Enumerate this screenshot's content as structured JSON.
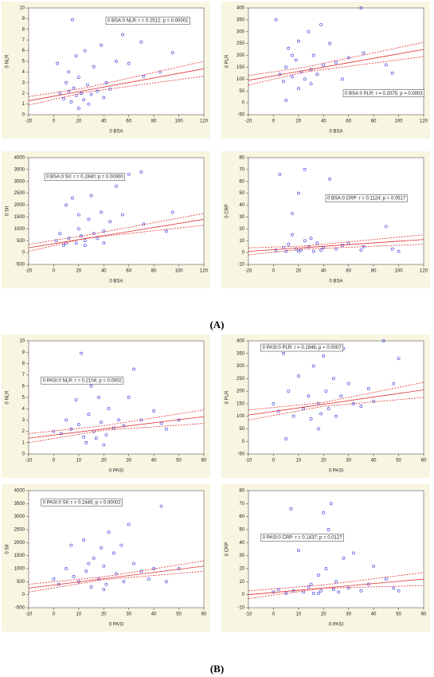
{
  "figure_labels": [
    "(A)",
    "(B)"
  ],
  "chart_data": [
    {
      "type": "scatter",
      "xlabel": "0 BSA",
      "ylabel": "0 NLR",
      "annotation": "0 BSA:0 NLR:  r = 0.2512; p = 0.00001",
      "xlim": [
        -20,
        120
      ],
      "ylim": [
        0,
        10
      ],
      "xticks": [
        -20,
        0,
        20,
        40,
        60,
        80,
        100,
        120
      ],
      "yticks": [
        0,
        1,
        2,
        3,
        4,
        5,
        6,
        7,
        8,
        9,
        10
      ],
      "color": "#2b2bd6",
      "x": [
        5,
        8,
        10,
        12,
        14,
        15,
        16,
        18,
        20,
        22,
        24,
        25,
        27,
        30,
        32,
        35,
        38,
        40,
        42,
        45,
        50,
        55,
        60,
        70,
        72,
        95,
        85,
        3,
        20,
        28,
        12,
        18
      ],
      "y": [
        2,
        1.5,
        3,
        2.2,
        1.2,
        8.9,
        2.5,
        1.8,
        3.5,
        2,
        1.4,
        6,
        2.8,
        1.9,
        4.5,
        2.2,
        6.5,
        1.6,
        3,
        2.4,
        5,
        7.5,
        4.8,
        6.8,
        3.6,
        5.8,
        4,
        4.8,
        0.6,
        1,
        4,
        5.5
      ],
      "fit_color": "#e03030",
      "fit_x": [
        -20,
        120
      ],
      "fit_y": [
        1.3,
        4.3
      ],
      "ci_x": [
        -20,
        25,
        120
      ],
      "ci_lower": [
        0.9,
        2.1,
        3.6
      ],
      "ci_upper": [
        1.7,
        2.5,
        5.0
      ]
    },
    {
      "type": "scatter",
      "xlabel": "0 BSA",
      "ylabel": "0 PLR",
      "annotation": "0 BSA:0 PLR:  r = 0.2075; p = 0.0003",
      "xlim": [
        -20,
        120
      ],
      "ylim": [
        -50,
        400
      ],
      "xticks": [
        -20,
        0,
        20,
        40,
        60,
        80,
        100,
        120
      ],
      "yticks": [
        -50,
        0,
        50,
        100,
        150,
        200,
        250,
        300,
        350,
        400
      ],
      "color": "#2b2bd6",
      "x": [
        2,
        5,
        8,
        10,
        12,
        15,
        18,
        20,
        22,
        25,
        28,
        30,
        32,
        35,
        38,
        40,
        45,
        50,
        55,
        60,
        70,
        72,
        90,
        95,
        10,
        20,
        30,
        15
      ],
      "y": [
        350,
        120,
        90,
        150,
        230,
        110,
        180,
        260,
        130,
        100,
        300,
        140,
        200,
        120,
        330,
        160,
        250,
        170,
        100,
        190,
        400,
        210,
        160,
        125,
        10,
        60,
        80,
        200
      ],
      "fit_color": "#e03030",
      "fit_x": [
        -20,
        120
      ],
      "fit_y": [
        95,
        225
      ],
      "ci_x": [
        -20,
        25,
        120
      ],
      "ci_lower": [
        75,
        130,
        195
      ],
      "ci_upper": [
        115,
        150,
        255
      ]
    },
    {
      "type": "scatter",
      "xlabel": "0 BSA",
      "ylabel": "0 SII",
      "annotation": "0 BSA:0 SII:  r = 0.2840; p = 0.00000",
      "xlim": [
        -20,
        120
      ],
      "ylim": [
        -500,
        4000
      ],
      "xticks": [
        -20,
        0,
        20,
        40,
        60,
        80,
        100,
        120
      ],
      "yticks": [
        -500,
        0,
        500,
        1000,
        1500,
        2000,
        2500,
        3000,
        3500,
        4000
      ],
      "color": "#2b2bd6",
      "x": [
        2,
        5,
        8,
        10,
        12,
        15,
        18,
        20,
        22,
        25,
        28,
        30,
        32,
        35,
        38,
        40,
        45,
        50,
        55,
        60,
        70,
        72,
        90,
        95,
        10,
        25,
        40,
        20
      ],
      "y": [
        500,
        800,
        300,
        2000,
        600,
        2300,
        400,
        1000,
        700,
        500,
        1400,
        2400,
        800,
        600,
        1700,
        900,
        1300,
        2800,
        1600,
        3300,
        3400,
        1200,
        900,
        1700,
        400,
        300,
        400,
        1600
      ],
      "fit_color": "#e03030",
      "fit_x": [
        -20,
        120
      ],
      "fit_y": [
        200,
        1400
      ],
      "ci_x": [
        -20,
        25,
        120
      ],
      "ci_lower": [
        50,
        600,
        1150
      ],
      "ci_upper": [
        350,
        720,
        1650
      ]
    },
    {
      "type": "scatter",
      "xlabel": "0 BSA",
      "ylabel": "0 CRP",
      "annotation": "0 BSA:0 CRP:  r = 0.1124; p = 0.0517",
      "xlim": [
        -20,
        120
      ],
      "ylim": [
        -10,
        80
      ],
      "xticks": [
        -20,
        0,
        20,
        40,
        60,
        80,
        100,
        120
      ],
      "yticks": [
        -10,
        0,
        10,
        20,
        30,
        40,
        50,
        60,
        70,
        80
      ],
      "color": "#2b2bd6",
      "x": [
        2,
        5,
        8,
        10,
        12,
        15,
        18,
        20,
        22,
        25,
        28,
        30,
        32,
        35,
        38,
        40,
        45,
        50,
        55,
        60,
        70,
        72,
        90,
        95,
        100,
        15,
        25,
        20
      ],
      "y": [
        2,
        66,
        4,
        1,
        7,
        33,
        3,
        50,
        2,
        70,
        5,
        12,
        1,
        8,
        2,
        4,
        62,
        3,
        6,
        8,
        2,
        5,
        22,
        3,
        1,
        15,
        10,
        1
      ],
      "fit_color": "#e03030",
      "fit_x": [
        -20,
        120
      ],
      "fit_y": [
        1,
        11
      ],
      "ci_x": [
        -20,
        25,
        120
      ],
      "ci_lower": [
        -2,
        3,
        7
      ],
      "ci_upper": [
        4,
        5.5,
        15
      ]
    },
    {
      "type": "scatter",
      "xlabel": "0 PASI",
      "ylabel": "0 NLR",
      "annotation": "0 PASI:0 NLR:  r = 0.2104; p = 0.0002",
      "xlim": [
        -10,
        60
      ],
      "ylim": [
        0,
        10
      ],
      "xticks": [
        -10,
        0,
        10,
        20,
        30,
        40,
        50,
        60
      ],
      "yticks": [
        0,
        1,
        2,
        3,
        4,
        5,
        6,
        7,
        8,
        9,
        10
      ],
      "color": "#2b2bd6",
      "x": [
        0,
        3,
        5,
        7,
        9,
        10,
        11,
        12,
        14,
        15,
        16,
        17,
        18,
        19,
        20,
        21,
        22,
        24,
        25,
        26,
        28,
        30,
        32,
        35,
        40,
        43,
        45,
        50,
        20,
        13
      ],
      "y": [
        2,
        1.8,
        3,
        2.2,
        4.8,
        2.6,
        8.9,
        1.5,
        3.5,
        6,
        2,
        1.4,
        5,
        2.8,
        6.5,
        1.7,
        4,
        2.3,
        6.6,
        3,
        2.5,
        5,
        7.5,
        3,
        3.8,
        2.7,
        2.2,
        3,
        0.8,
        1
      ],
      "fit_color": "#e03030",
      "fit_x": [
        -10,
        60
      ],
      "fit_y": [
        1.4,
        3.3
      ],
      "ci_x": [
        -10,
        20,
        60
      ],
      "ci_lower": [
        1,
        2.1,
        2.7
      ],
      "ci_upper": [
        1.8,
        2.5,
        3.9
      ]
    },
    {
      "type": "scatter",
      "xlabel": "0 PASI",
      "ylabel": "0 PLR",
      "annotation": "0 PASI:0 PLR:  r = 0.1946; p = 0.0007",
      "xlim": [
        -10,
        60
      ],
      "ylim": [
        -50,
        400
      ],
      "xticks": [
        -10,
        0,
        10,
        20,
        30,
        40,
        50,
        60
      ],
      "yticks": [
        -50,
        0,
        50,
        100,
        150,
        200,
        250,
        300,
        350,
        400
      ],
      "color": "#2b2bd6",
      "x": [
        0,
        2,
        4,
        6,
        8,
        10,
        12,
        14,
        15,
        16,
        18,
        19,
        20,
        21,
        22,
        24,
        25,
        27,
        28,
        30,
        32,
        35,
        38,
        40,
        44,
        48,
        50,
        5,
        18
      ],
      "y": [
        150,
        120,
        350,
        200,
        100,
        260,
        130,
        180,
        90,
        300,
        150,
        110,
        340,
        200,
        130,
        250,
        100,
        180,
        370,
        230,
        150,
        140,
        210,
        160,
        400,
        230,
        330,
        10,
        50
      ],
      "fit_color": "#e03030",
      "fit_x": [
        -10,
        60
      ],
      "fit_y": [
        105,
        205
      ],
      "ci_x": [
        -10,
        20,
        60
      ],
      "ci_lower": [
        85,
        140,
        175
      ],
      "ci_upper": [
        125,
        155,
        235
      ]
    },
    {
      "type": "scatter",
      "xlabel": "0 PASI",
      "ylabel": "0 SII",
      "annotation": "0 PASI:0 SII:  r = 0.2445; p = 0.00002",
      "xlim": [
        -10,
        60
      ],
      "ylim": [
        -500,
        4000
      ],
      "xticks": [
        -10,
        0,
        10,
        20,
        30,
        40,
        50,
        60
      ],
      "yticks": [
        -500,
        0,
        500,
        1000,
        1500,
        2000,
        2500,
        3000,
        3500,
        4000
      ],
      "color": "#2b2bd6",
      "x": [
        0,
        2,
        5,
        7,
        8,
        10,
        12,
        13,
        15,
        16,
        18,
        19,
        20,
        21,
        22,
        24,
        25,
        27,
        28,
        30,
        32,
        35,
        38,
        40,
        43,
        45,
        50,
        20,
        14
      ],
      "y": [
        600,
        400,
        1000,
        1900,
        700,
        500,
        2100,
        900,
        300,
        1400,
        600,
        1800,
        1100,
        400,
        2400,
        1600,
        800,
        1900,
        500,
        2700,
        1200,
        900,
        600,
        1000,
        3400,
        500,
        1000,
        200,
        1200
      ],
      "fit_color": "#e03030",
      "fit_x": [
        -10,
        60
      ],
      "fit_y": [
        250,
        1100
      ],
      "ci_x": [
        -10,
        20,
        60
      ],
      "ci_lower": [
        100,
        580,
        900
      ],
      "ci_upper": [
        400,
        690,
        1300
      ]
    },
    {
      "type": "scatter",
      "xlabel": "0 PASI",
      "ylabel": "0 CRP",
      "annotation": "0 PASI:0 CRP:  r = 0.1437; p = 0.0127",
      "xlim": [
        -10,
        60
      ],
      "ylim": [
        -10,
        80
      ],
      "xticks": [
        -10,
        0,
        10,
        20,
        30,
        40,
        50,
        60
      ],
      "yticks": [
        -10,
        0,
        10,
        20,
        30,
        40,
        50,
        60,
        70,
        80
      ],
      "color": "#2b2bd6",
      "x": [
        0,
        2,
        5,
        7,
        8,
        10,
        12,
        14,
        15,
        16,
        18,
        19,
        20,
        21,
        22,
        23,
        24,
        25,
        26,
        28,
        30,
        32,
        35,
        38,
        40,
        45,
        48,
        50,
        18
      ],
      "y": [
        2,
        4,
        1,
        66,
        3,
        34,
        2,
        6,
        8,
        1,
        15,
        3,
        63,
        20,
        50,
        70,
        4,
        10,
        2,
        28,
        5,
        32,
        3,
        8,
        22,
        12,
        5,
        3,
        1
      ],
      "fit_color": "#e03030",
      "fit_x": [
        -10,
        60
      ],
      "fit_y": [
        0,
        12
      ],
      "ci_x": [
        -10,
        20,
        60
      ],
      "ci_lower": [
        -3,
        5,
        7
      ],
      "ci_upper": [
        3,
        7.5,
        17
      ]
    }
  ]
}
